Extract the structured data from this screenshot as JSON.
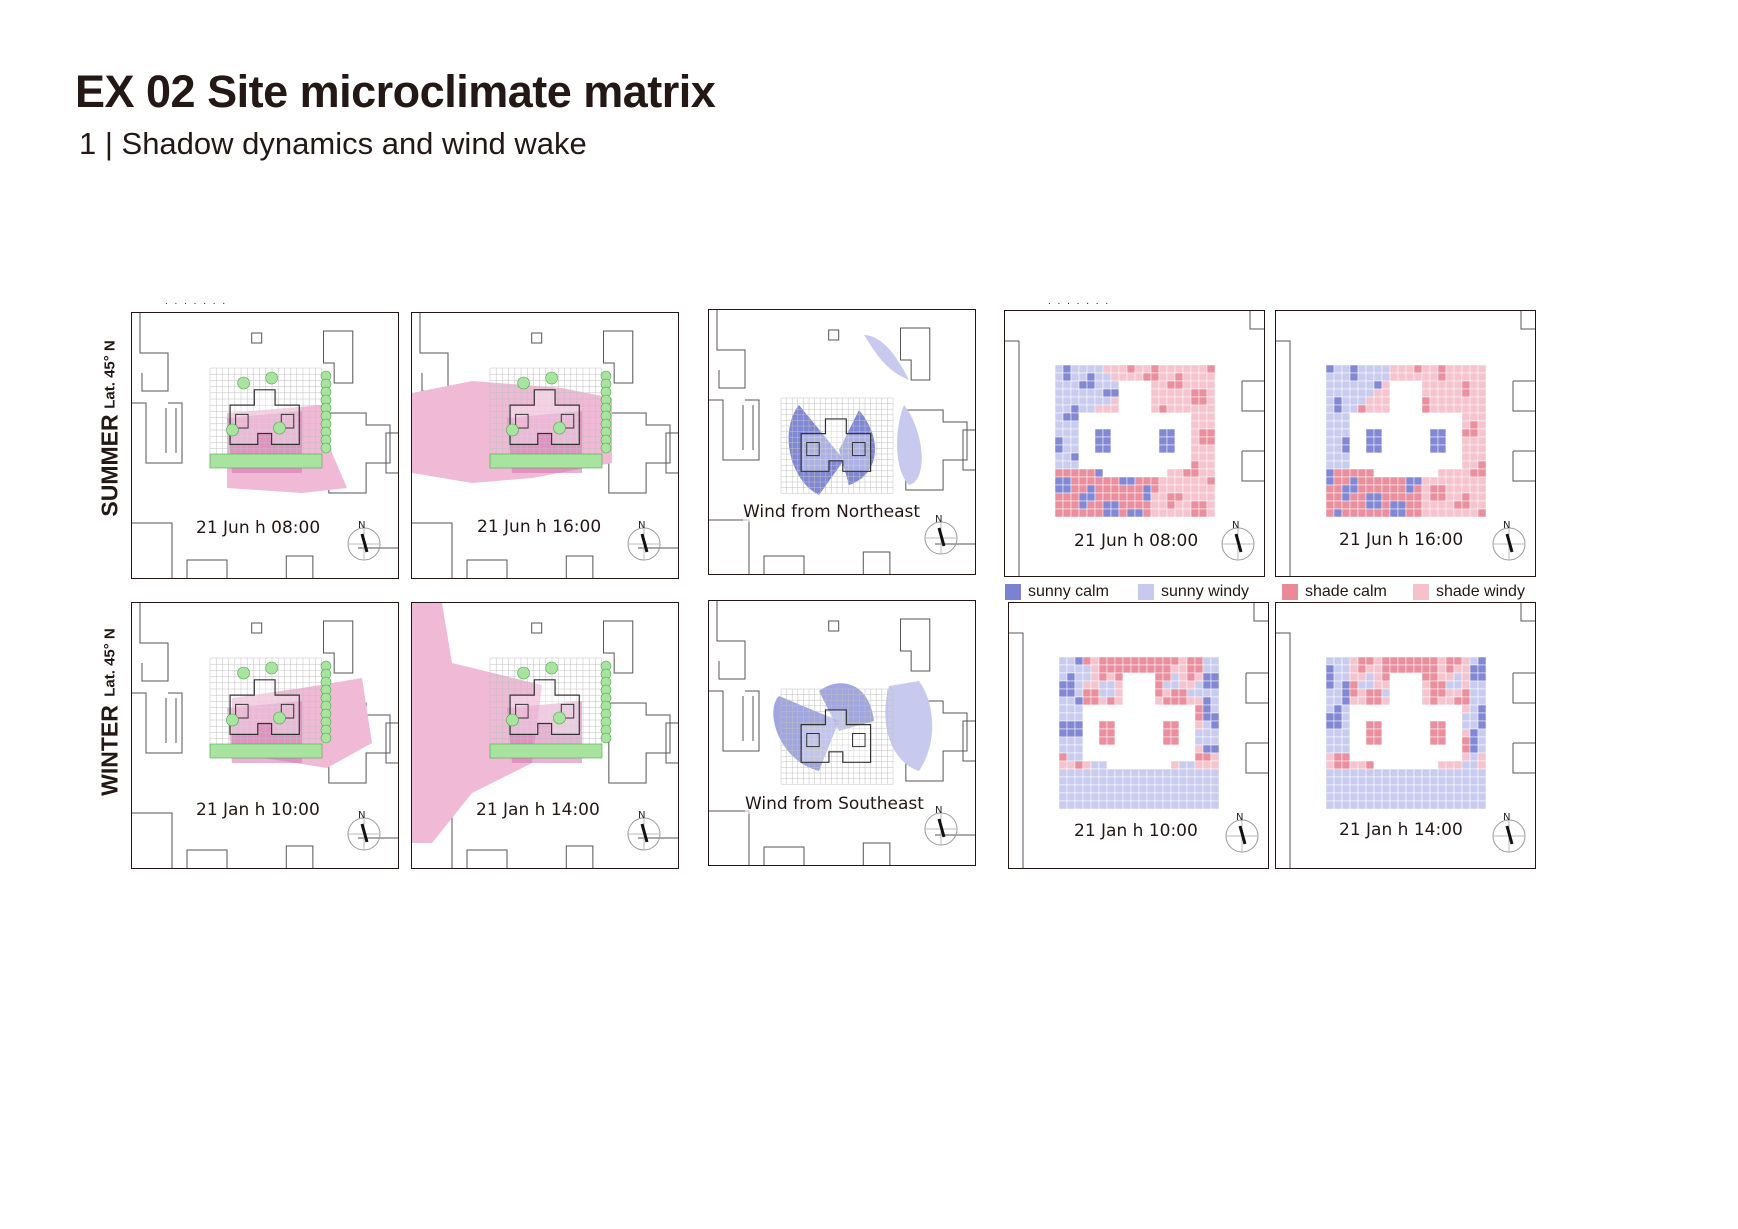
{
  "header": {
    "title": "EX 02 Site microclimate matrix",
    "subtitle": "1 | Shadow dynamics and wind wake"
  },
  "rows": {
    "summer": {
      "season": "SUMMER",
      "lat": "Lat. 45° N"
    },
    "winter": {
      "season": "WINTER",
      "lat": "Lat. 45° N"
    }
  },
  "panels": {
    "shadow_summer_morning": "21 Jun h 08:00",
    "shadow_summer_afternoon": "21 Jun h 16:00",
    "wind_summer": "Wind from Northeast",
    "matrix_summer_morning": "21 Jun h 08:00",
    "matrix_summer_afternoon": "21 Jun h 16:00",
    "shadow_winter_morning": "21 Jan h 10:00",
    "shadow_winter_afternoon": "21 Jan h 14:00",
    "wind_winter": "Wind from Southeast",
    "matrix_winter_morning": "21 Jan h 10:00",
    "matrix_winter_afternoon": "21 Jan h 14:00"
  },
  "compass": {
    "north_label": "N"
  },
  "legend": [
    {
      "label": "sunny calm",
      "color": "#7c82d2"
    },
    {
      "label": "sunny windy",
      "color": "#c7caee"
    },
    {
      "label": "shade calm",
      "color": "#e98a99"
    },
    {
      "label": "shade windy",
      "color": "#f5c1cc"
    }
  ],
  "colors": {
    "shadow": "#f0b9d6",
    "shadow_dark": "#d673b3",
    "trees": "#a8e3a0",
    "wind_wake": "#8088d6",
    "grid": "#bfbfbf"
  }
}
